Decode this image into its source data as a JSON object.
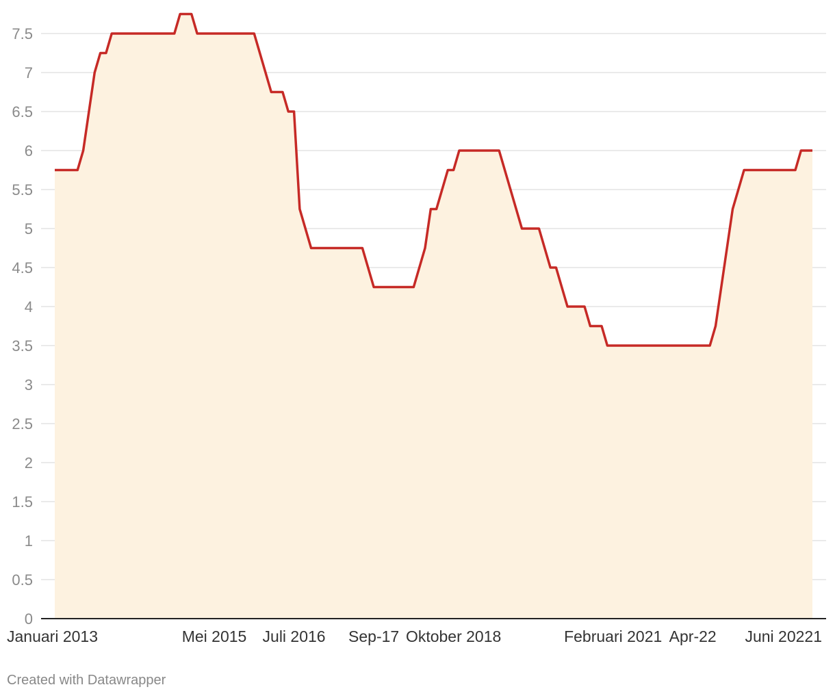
{
  "chart_data": {
    "type": "area",
    "title": "",
    "xlabel": "",
    "ylabel": "",
    "ylim": [
      0,
      7.5
    ],
    "grid": true,
    "y_ticks": [
      0,
      0.5,
      1,
      1.5,
      2,
      2.5,
      3,
      3.5,
      4,
      4.5,
      5,
      5.5,
      6,
      6.5,
      7,
      7.5
    ],
    "y_tick_labels": [
      "0",
      "0.5",
      "1",
      "1.5",
      "2",
      "2.5",
      "3",
      "3.5",
      "4",
      "4.5",
      "5",
      "5.5",
      "6",
      "6.5",
      "7",
      "7.5"
    ],
    "x_tick_labels": [
      {
        "label": "Januari 2013",
        "index": 0
      },
      {
        "label": "Mei 2015",
        "index": 28
      },
      {
        "label": "Juli 2016",
        "index": 42
      },
      {
        "label": "Sep-17",
        "index": 56
      },
      {
        "label": "Oktober 2018",
        "index": 70
      },
      {
        "label": "Februari 2021",
        "index": 98
      },
      {
        "label": "Apr-22",
        "index": 112
      },
      {
        "label": "Juni 20221",
        "index": 126
      }
    ],
    "colors": {
      "line": "#c62a26",
      "fill": "#fdf2e0",
      "grid": "#e3e3e3",
      "baseline": "#222222"
    },
    "series": [
      {
        "values": [
          5.75,
          5.75,
          5.75,
          5.75,
          5.75,
          6.0,
          6.5,
          7.0,
          7.25,
          7.25,
          7.5,
          7.5,
          7.5,
          7.5,
          7.5,
          7.5,
          7.5,
          7.5,
          7.5,
          7.5,
          7.5,
          7.5,
          7.75,
          7.75,
          7.75,
          7.5,
          7.5,
          7.5,
          7.5,
          7.5,
          7.5,
          7.5,
          7.5,
          7.5,
          7.5,
          7.5,
          7.25,
          7.0,
          6.75,
          6.75,
          6.75,
          6.5,
          6.5,
          5.25,
          5.0,
          4.75,
          4.75,
          4.75,
          4.75,
          4.75,
          4.75,
          4.75,
          4.75,
          4.75,
          4.75,
          4.5,
          4.25,
          4.25,
          4.25,
          4.25,
          4.25,
          4.25,
          4.25,
          4.25,
          4.5,
          4.75,
          5.25,
          5.25,
          5.5,
          5.75,
          5.75,
          6.0,
          6.0,
          6.0,
          6.0,
          6.0,
          6.0,
          6.0,
          6.0,
          5.75,
          5.5,
          5.25,
          5.0,
          5.0,
          5.0,
          5.0,
          4.75,
          4.5,
          4.5,
          4.25,
          4.0,
          4.0,
          4.0,
          4.0,
          3.75,
          3.75,
          3.75,
          3.5,
          3.5,
          3.5,
          3.5,
          3.5,
          3.5,
          3.5,
          3.5,
          3.5,
          3.5,
          3.5,
          3.5,
          3.5,
          3.5,
          3.5,
          3.5,
          3.5,
          3.5,
          3.5,
          3.75,
          4.25,
          4.75,
          5.25,
          5.5,
          5.75,
          5.75,
          5.75,
          5.75,
          5.75,
          5.75,
          5.75,
          5.75,
          5.75,
          5.75,
          6.0,
          6.0,
          6.0
        ]
      }
    ]
  },
  "footer": {
    "credit": "Created with Datawrapper"
  }
}
